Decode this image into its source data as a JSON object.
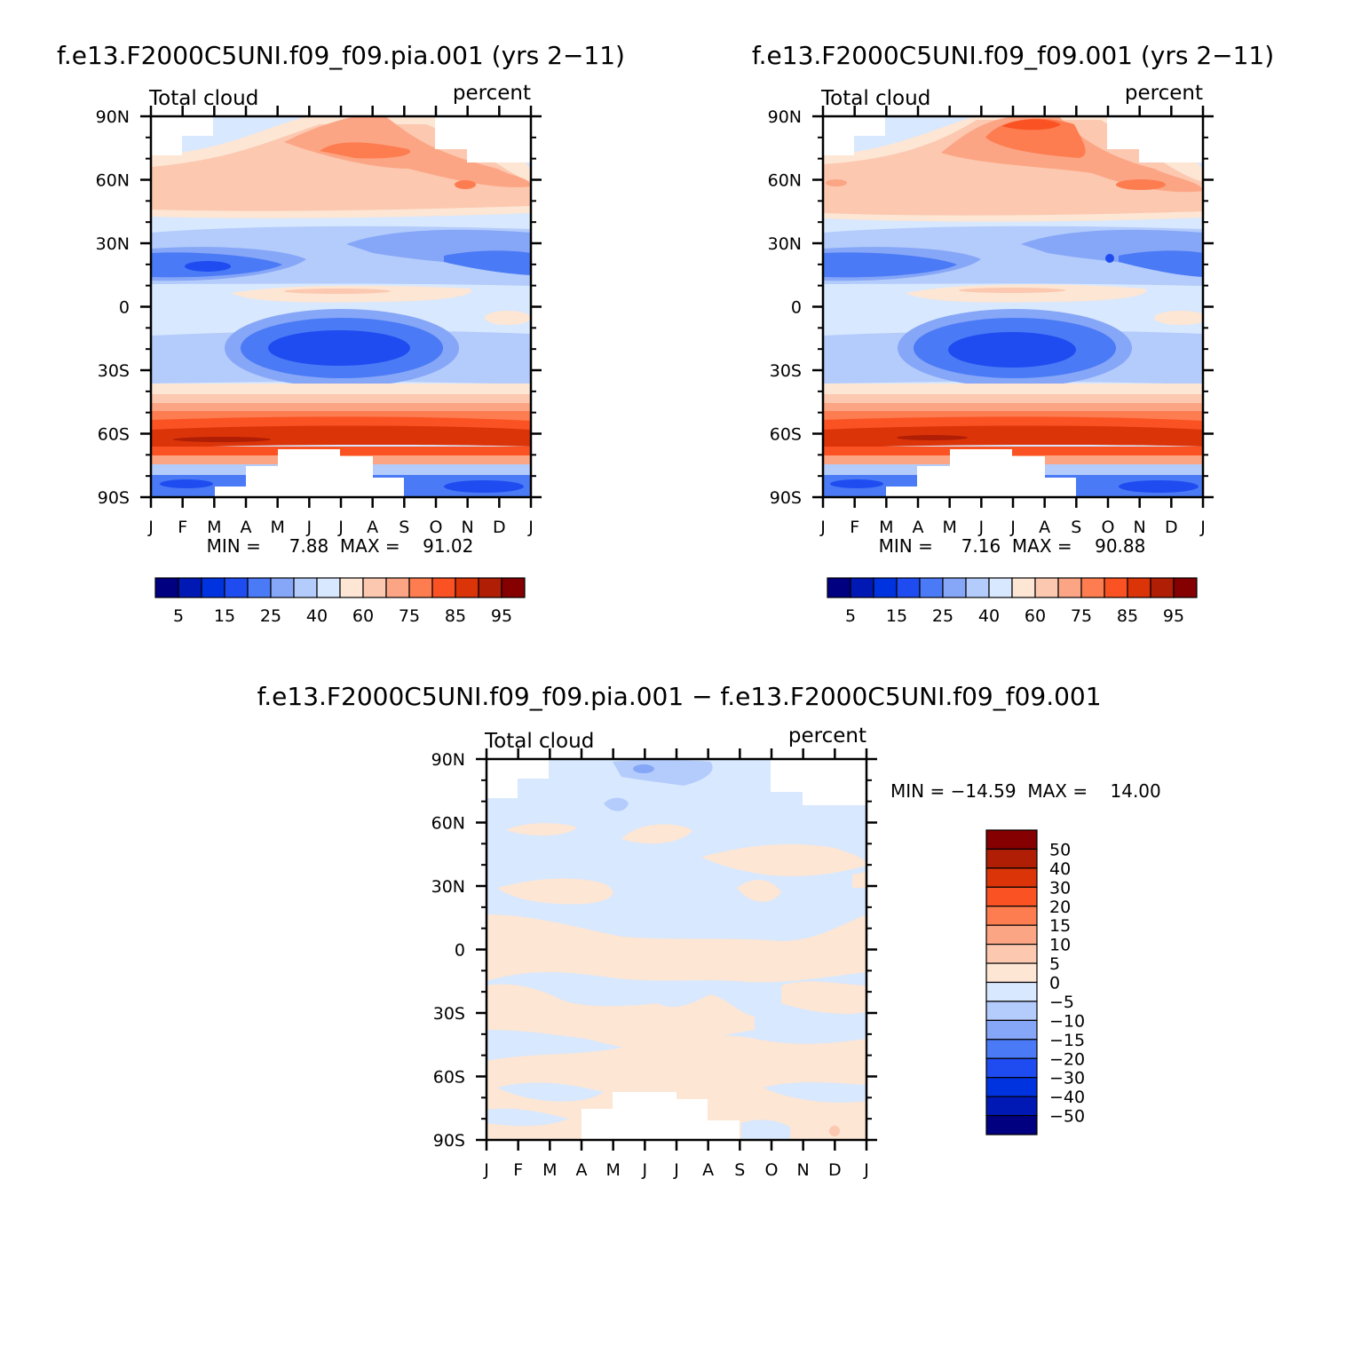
{
  "chart_data": [
    {
      "type": "heatmap",
      "title": "f.e13.F2000C5UNI.f09_f09.pia.001 (yrs 2−11)",
      "left_label": "Total cloud",
      "right_label": "percent",
      "x_ticks": [
        "J",
        "F",
        "M",
        "A",
        "M",
        "J",
        "J",
        "A",
        "S",
        "O",
        "N",
        "D",
        "J"
      ],
      "y_ticks": [
        "90N",
        "60N",
        "30N",
        "0",
        "30S",
        "60S",
        "90S"
      ],
      "min_max_text": "MIN =     7.88  MAX =    91.02",
      "min": 7.88,
      "max": 91.02,
      "colorbar_labels": [
        "5",
        "15",
        "25",
        "40",
        "60",
        "75",
        "85",
        "95"
      ]
    },
    {
      "type": "heatmap",
      "title": "f.e13.F2000C5UNI.f09_f09.001 (yrs 2−11)",
      "left_label": "Total cloud",
      "right_label": "percent",
      "x_ticks": [
        "J",
        "F",
        "M",
        "A",
        "M",
        "J",
        "J",
        "A",
        "S",
        "O",
        "N",
        "D",
        "J"
      ],
      "y_ticks": [
        "90N",
        "60N",
        "30N",
        "0",
        "30S",
        "60S",
        "90S"
      ],
      "min_max_text": "MIN =     7.16  MAX =    90.88",
      "min": 7.16,
      "max": 90.88,
      "colorbar_labels": [
        "5",
        "15",
        "25",
        "40",
        "60",
        "75",
        "85",
        "95"
      ]
    },
    {
      "type": "heatmap",
      "title": "f.e13.F2000C5UNI.f09_f09.pia.001 − f.e13.F2000C5UNI.f09_f09.001",
      "left_label": "Total cloud",
      "right_label": "percent",
      "x_ticks": [
        "J",
        "F",
        "M",
        "A",
        "M",
        "J",
        "J",
        "A",
        "S",
        "O",
        "N",
        "D",
        "J"
      ],
      "y_ticks": [
        "90N",
        "60N",
        "30N",
        "0",
        "30S",
        "60S",
        "90S"
      ],
      "min_max_text": "MIN = −14.59  MAX =    14.00",
      "min": -14.59,
      "max": 14.0,
      "colorbar_labels": [
        "50",
        "40",
        "30",
        "20",
        "15",
        "10",
        "5",
        "0",
        "−5",
        "−10",
        "−15",
        "−20",
        "−30",
        "−40",
        "−50"
      ]
    }
  ],
  "colors": {
    "abs_scale": [
      "#000080",
      "#0019b4",
      "#0033e0",
      "#1f4cf0",
      "#4a7af5",
      "#86a6f7",
      "#b4ccfc",
      "#d8e8fe",
      "#fde6d4",
      "#fcc8b0",
      "#fca584",
      "#fd7c50",
      "#fa5223",
      "#dc3409",
      "#b01e06",
      "#850000"
    ],
    "diff_scale": [
      "#850000",
      "#b01e06",
      "#dc3409",
      "#fa5223",
      "#fd7c50",
      "#fca584",
      "#fcc8b0",
      "#fde6d4",
      "#d8e8fe",
      "#b4ccfc",
      "#86a6f7",
      "#4a7af5",
      "#1f4cf0",
      "#0033e0",
      "#0019b4",
      "#000080"
    ]
  }
}
